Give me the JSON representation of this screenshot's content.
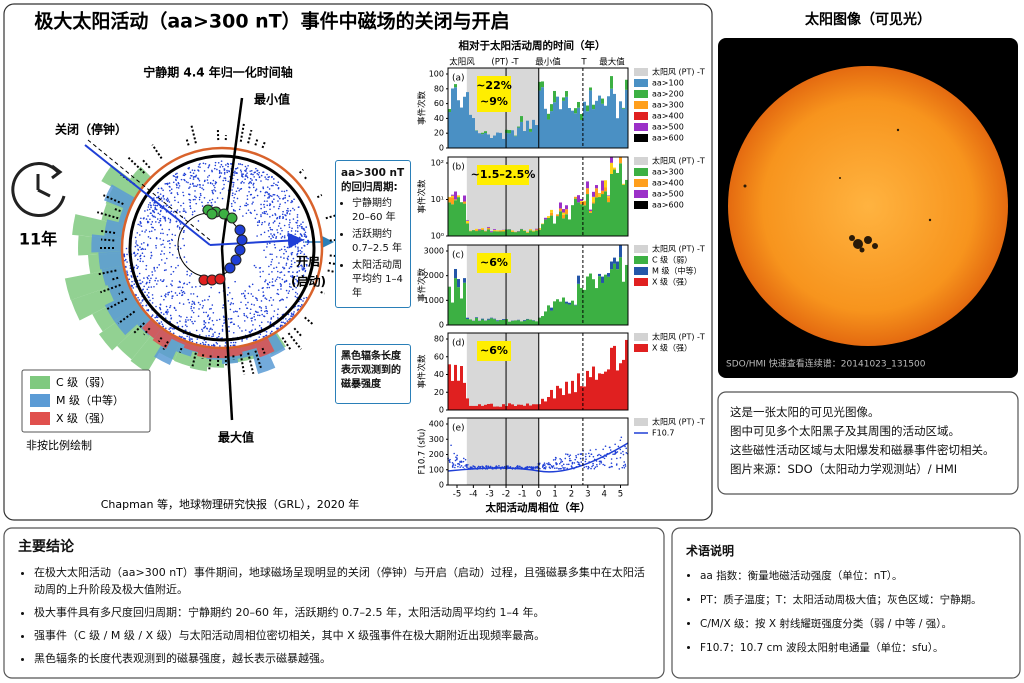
{
  "header": {
    "title": "极大太阳活动（aa>300 nT）事件中磁场的关闭与开启"
  },
  "polar": {
    "subtitle": "宁静期 4.4 年归一化时间轴",
    "minimum": "最小值",
    "closing": "关闭（停钟）",
    "opening": [
      "开启",
      "(启动)"
    ],
    "maximum": "最大值",
    "cycle": "11年",
    "legend": [
      "C 级（弱）",
      "M 级（中等）",
      "X 级（强）"
    ],
    "note": "非按比例绘制"
  },
  "callout_period": {
    "title": [
      "aa>300 nT",
      "的回归周期:"
    ],
    "items": [
      [
        "宁静期约",
        "20–60 年"
      ],
      [
        "活跃期约",
        "0.7–2.5 年"
      ],
      [
        "太阳活动周",
        "平均约 1–4 年"
      ]
    ]
  },
  "callout_spokes": [
    "黑色辐条长度",
    "表示观测到的",
    "磁暴强度"
  ],
  "panels": {
    "top_title": "相对于太阳活动周的时间（年）",
    "top_labels": [
      "太阳风",
      "(PT) -T",
      "最小值",
      "T",
      "最大值"
    ],
    "x_label": "太阳活动周相位（年）",
    "x_ticks": [
      "-5",
      "-4",
      "-3",
      "-2",
      "-1",
      "0",
      "1",
      "2",
      "3",
      "4",
      "5"
    ],
    "items": [
      {
        "letter": "(a)",
        "y_label": "事件次数",
        "y_ticks": [
          "0",
          "20",
          "40",
          "60",
          "80",
          "100"
        ],
        "annotation": [
          "~22%",
          "~9%"
        ],
        "legend": [
          "太阳风 (PT) -T",
          "aa>100",
          "aa>200",
          "aa>300",
          "aa>400",
          "aa>500",
          "aa>600"
        ]
      },
      {
        "letter": "(b)",
        "y_label": "事件次数",
        "y_ticks": [
          "10⁰",
          "10¹",
          "10²"
        ],
        "annotation": [
          "~1.5–2.5%"
        ],
        "legend": [
          "太阳风 (PT) -T",
          "aa>300",
          "aa>400",
          "aa>500",
          "aa>600"
        ]
      },
      {
        "letter": "(c)",
        "y_label": "事件次数",
        "y_ticks": [
          "0",
          "1000",
          "2000",
          "3000"
        ],
        "annotation": [
          "~6%"
        ],
        "legend": [
          "太阳风 (PT) -T",
          "C 级（弱）",
          "M 级（中等）",
          "X 级（强）"
        ]
      },
      {
        "letter": "(d)",
        "y_label": "事件次数",
        "y_ticks": [
          "0",
          "20",
          "40",
          "60",
          "80"
        ],
        "annotation": [
          "~6%"
        ],
        "legend": [
          "太阳风 (PT) -T",
          "X 级（强）"
        ]
      },
      {
        "letter": "(e)",
        "y_label": "F10.7 (sfu)",
        "y_ticks": [
          "0",
          "100",
          "200",
          "300",
          "400"
        ],
        "annotation": [],
        "legend": [
          "太阳风 (PT) -T",
          "F10.7"
        ]
      }
    ]
  },
  "citation": "Chapman 等，地球物理研究快报（GRL），2020 年",
  "sun": {
    "title": "太阳图像（可见光）",
    "caption": "SDO/HMI 快速查看连续谱：20141023_131500"
  },
  "description": [
    "这是一张太阳的可见光图像。",
    "图中可见多个太阳黑子及其周围的活动区域。",
    "这些磁性活动区域与太阳爆发和磁暴事件密切相关。",
    "图片来源：SDO（太阳动力学观测站）/ HMI"
  ],
  "conclusions": {
    "title": "主要结论",
    "items": [
      "在极大太阳活动（aa>300 nT）事件期间，地球磁场呈现明显的关闭（停钟）与开启（启动）过程，且强磁暴多集中在太阳活动周的上升阶段及极大值附近。",
      "极大事件具有多尺度回归周期：宁静期约 20–60 年，活跃期约 0.7–2.5 年，太阳活动周平均约 1–4 年。",
      "强事件（C 级 / M 级 / X 级）与太阳活动周相位密切相关，其中 X 级强事件在极大期附近出现频率最高。",
      "黑色辐条的长度代表观测到的磁暴强度，越长表示磁暴越强。"
    ]
  },
  "terms": {
    "title": "术语说明",
    "items": [
      "aa 指数：衡量地磁活动强度（单位：nT）。",
      "PT：质子温度；T：太阳活动周极大值；灰色区域：宁静期。",
      "C/M/X 级：按 X 射线耀斑强度分类（弱 / 中等 / 强）。",
      "F10.7：10.7 cm 波段太阳射电通量（单位：sfu）。"
    ]
  }
}
